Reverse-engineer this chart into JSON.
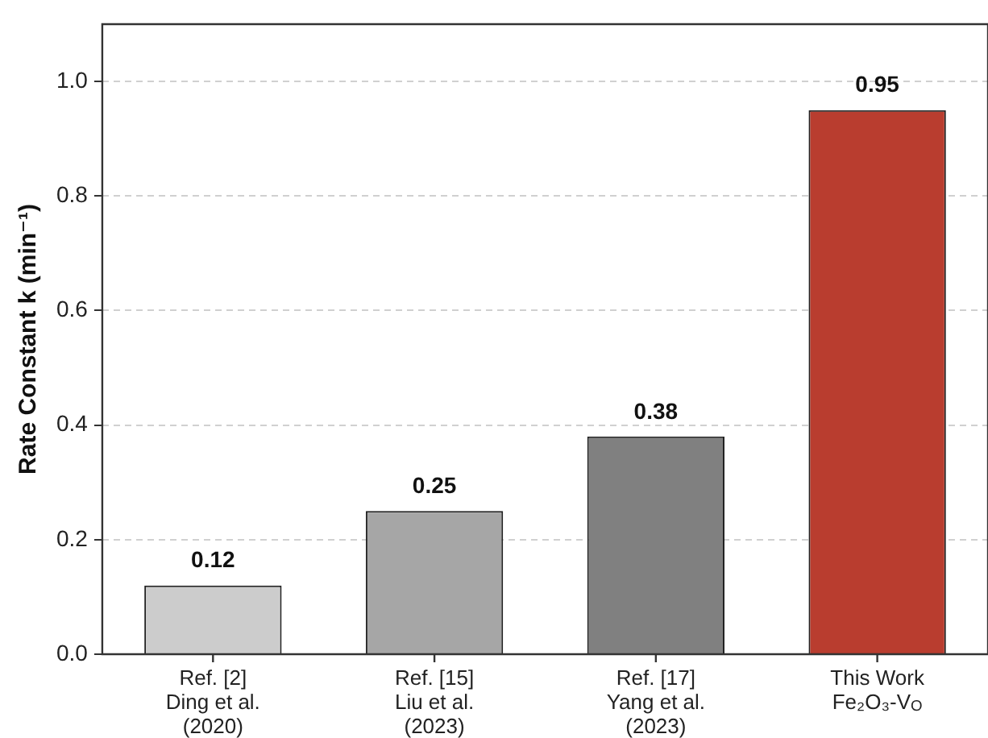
{
  "chart_data": {
    "type": "bar",
    "ylabel": "Rate Constant k (min⁻¹)",
    "categories": [
      "Ref. [2]\nDing et al.\n(2020)",
      "Ref. [15]\nLiu et al.\n(2023)",
      "Ref. [17]\nYang et al.\n(2023)",
      "This Work\nFe₂O₃-V$_{O}$"
    ],
    "values": [
      0.12,
      0.25,
      0.38,
      0.95
    ],
    "colors": [
      "#cccccc",
      "#a6a6a6",
      "#808080",
      "#b93d2f"
    ],
    "ylim": [
      0,
      1.1
    ],
    "yticks": [
      {
        "value": 0,
        "label": "0.0"
      },
      {
        "value": 0.2,
        "label": "0.2"
      },
      {
        "value": 0.4,
        "label": "0.4"
      },
      {
        "value": 0.6,
        "label": "0.6"
      },
      {
        "value": 0.8,
        "label": "0.8"
      },
      {
        "value": 1,
        "label": "1.0"
      }
    ],
    "grid": "y",
    "data_labels": true,
    "legend": false
  }
}
